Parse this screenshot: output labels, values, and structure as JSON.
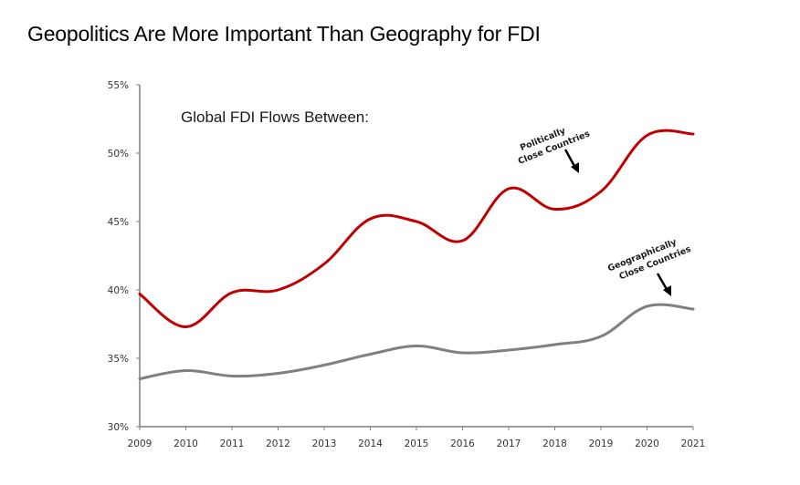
{
  "page": {
    "title": "Geopolitics Are More Important Than Geography for FDI"
  },
  "chart_data": {
    "type": "line",
    "title": "Geopolitics Are More Important Than Geography for FDI",
    "subtitle": "Global FDI Flows Between:",
    "xlabel": "",
    "ylabel": "",
    "x": [
      2009,
      2010,
      2011,
      2012,
      2013,
      2014,
      2015,
      2016,
      2017,
      2018,
      2019,
      2020,
      2021
    ],
    "x_tick_labels": [
      "2009",
      "2010",
      "2011",
      "2012",
      "2013",
      "2014",
      "2015",
      "2016",
      "2017",
      "2018",
      "2019",
      "2020",
      "2021"
    ],
    "ylim": [
      30,
      55
    ],
    "y_ticks": [
      30,
      35,
      40,
      45,
      50,
      55
    ],
    "y_tick_labels": [
      "30%",
      "35%",
      "40%",
      "45%",
      "50%",
      "55%"
    ],
    "grid": false,
    "smooth": true,
    "series": [
      {
        "name": "Politically Close Countries",
        "color": "#c00000",
        "values": [
          39.7,
          37.3,
          39.8,
          40.0,
          41.9,
          45.2,
          45.0,
          43.6,
          47.4,
          45.9,
          47.2,
          51.3,
          51.4
        ]
      },
      {
        "name": "Geographically Close Countries",
        "color": "#808080",
        "values": [
          33.5,
          34.1,
          33.7,
          33.9,
          34.5,
          35.3,
          35.9,
          35.4,
          35.6,
          36.0,
          36.6,
          38.8,
          38.6
        ]
      }
    ],
    "annotations": [
      {
        "series": "Politically Close Countries",
        "lines": [
          "Politically",
          "Close Countries"
        ]
      },
      {
        "series": "Geographically Close Countries",
        "lines": [
          "Geographically",
          "Close Countries"
        ]
      }
    ]
  }
}
